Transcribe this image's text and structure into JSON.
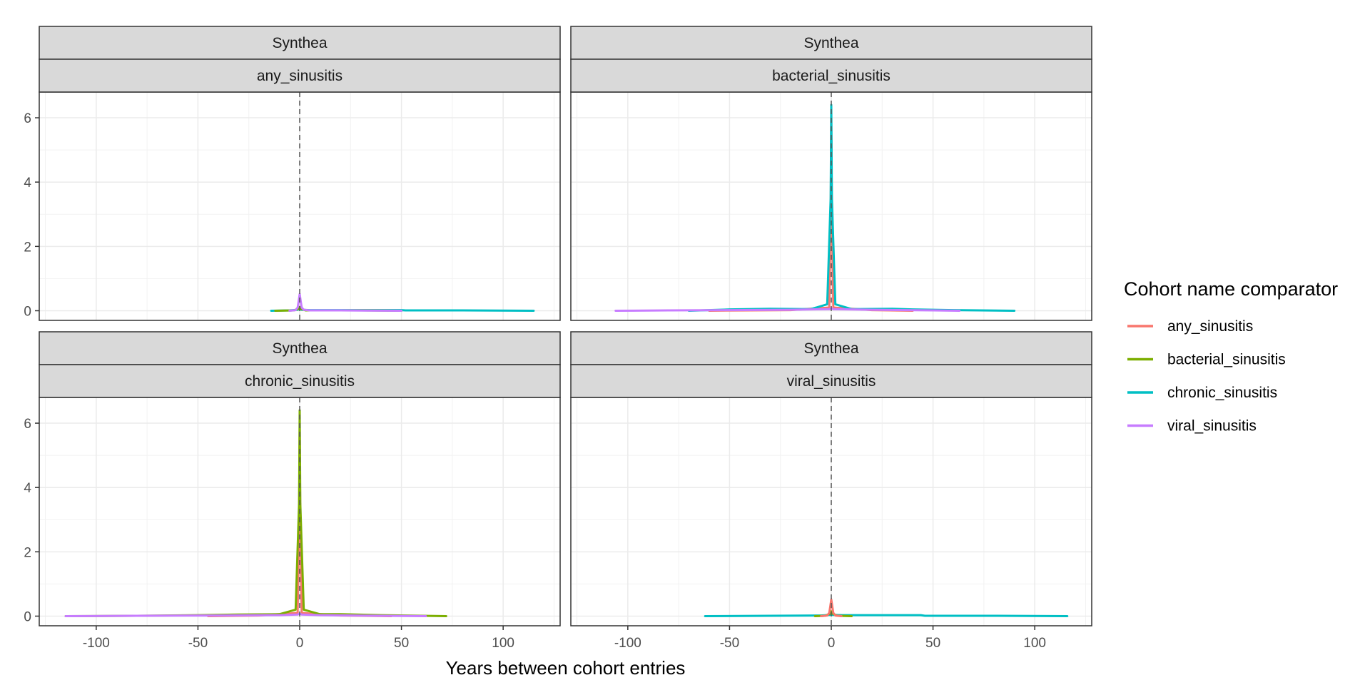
{
  "chart_data": {
    "type": "line",
    "xlabel": "Years between cohort entries",
    "ylabel": "",
    "xlim": [
      -128,
      128
    ],
    "ylim": [
      -0.3,
      6.8
    ],
    "x_ticks": [
      -100,
      -50,
      0,
      50,
      100
    ],
    "x_tick_labels": [
      "-100",
      "-50",
      "0",
      "50",
      "100"
    ],
    "y_ticks": [
      0,
      2,
      4,
      6
    ],
    "y_tick_labels": [
      "0",
      "2",
      "4",
      "6"
    ],
    "reference_line_x": 0,
    "grid": true,
    "legend": {
      "title": "Cohort name comparator",
      "placement": "right",
      "entries": [
        {
          "name": "any_sinusitis",
          "color": "#F8766D"
        },
        {
          "name": "bacterial_sinusitis",
          "color": "#7CAE00"
        },
        {
          "name": "chronic_sinusitis",
          "color": "#00BFC4"
        },
        {
          "name": "viral_sinusitis",
          "color": "#C77CFF"
        }
      ]
    },
    "panels": [
      {
        "database": "Synthea",
        "cohort": "any_sinusitis",
        "series": [
          {
            "name": "chronic_sinusitis",
            "x": [
              -14,
              -5,
              -1,
              0,
              1,
              5,
              20,
              50,
              52,
              80,
              115
            ],
            "y": [
              0,
              0.01,
              0.03,
              0.06,
              0.03,
              0.02,
              0.02,
              0.02,
              0.01,
              0.01,
              0
            ]
          },
          {
            "name": "bacterial_sinusitis",
            "x": [
              -12,
              -3,
              -0.5,
              0,
              0.5,
              3,
              30,
              50
            ],
            "y": [
              0,
              0.01,
              0.06,
              0.12,
              0.06,
              0.01,
              0.01,
              0
            ]
          },
          {
            "name": "viral_sinusitis",
            "x": [
              -5,
              -2,
              -1,
              -0.5,
              0,
              0.5,
              1,
              2,
              5,
              20,
              50
            ],
            "y": [
              0,
              0.02,
              0.1,
              0.3,
              0.52,
              0.3,
              0.1,
              0.03,
              0.01,
              0.01,
              0
            ]
          }
        ]
      },
      {
        "database": "Synthea",
        "cohort": "bacterial_sinusitis",
        "series": [
          {
            "name": "any_sinusitis",
            "x": [
              -60,
              -20,
              -1,
              -0.3,
              0,
              0.3,
              1,
              20,
              40
            ],
            "y": [
              0,
              0.02,
              0.1,
              3.0,
              5.9,
              3.0,
              0.1,
              0.02,
              0
            ]
          },
          {
            "name": "chronic_sinusitis",
            "x": [
              -70,
              -50,
              -30,
              -10,
              -2,
              -0.3,
              0,
              0.3,
              2,
              10,
              30,
              40,
              60,
              90
            ],
            "y": [
              0,
              0.04,
              0.06,
              0.05,
              0.2,
              3.5,
              6.4,
              3.5,
              0.2,
              0.05,
              0.06,
              0.04,
              0.02,
              0
            ]
          },
          {
            "name": "viral_sinusitis",
            "x": [
              -106,
              -80,
              -50,
              -20,
              -1,
              0,
              1,
              20,
              50,
              63
            ],
            "y": [
              0,
              0.01,
              0.02,
              0.03,
              0.05,
              0.08,
              0.05,
              0.03,
              0.01,
              0
            ]
          }
        ]
      },
      {
        "database": "Synthea",
        "cohort": "chronic_sinusitis",
        "series": [
          {
            "name": "any_sinusitis",
            "x": [
              -45,
              -20,
              -1,
              -0.3,
              0,
              0.3,
              1,
              20,
              45
            ],
            "y": [
              0,
              0.02,
              0.1,
              2.8,
              5.8,
              2.8,
              0.1,
              0.02,
              0
            ]
          },
          {
            "name": "bacterial_sinusitis",
            "x": [
              -115,
              -80,
              -50,
              -30,
              -10,
              -2,
              -0.3,
              0,
              0.3,
              2,
              10,
              20,
              40,
              60,
              72
            ],
            "y": [
              0,
              0.01,
              0.03,
              0.05,
              0.06,
              0.2,
              3.5,
              6.4,
              3.5,
              0.2,
              0.06,
              0.06,
              0.03,
              0.01,
              0
            ]
          },
          {
            "name": "viral_sinusitis",
            "x": [
              -115,
              -80,
              -40,
              -10,
              -1,
              0,
              1,
              10,
              40,
              62
            ],
            "y": [
              0,
              0.01,
              0.02,
              0.03,
              0.05,
              0.08,
              0.05,
              0.03,
              0.01,
              0
            ]
          }
        ]
      },
      {
        "database": "Synthea",
        "cohort": "viral_sinusitis",
        "series": [
          {
            "name": "chronic_sinusitis",
            "x": [
              -62,
              -30,
              -5,
              0,
              5,
              20,
              44,
              46,
              80,
              116
            ],
            "y": [
              0,
              0.01,
              0.02,
              0.04,
              0.03,
              0.03,
              0.03,
              0.01,
              0.01,
              0
            ]
          },
          {
            "name": "bacterial_sinusitis",
            "x": [
              -8,
              -3,
              -0.5,
              0,
              0.5,
              3,
              10
            ],
            "y": [
              0,
              0.01,
              0.08,
              0.15,
              0.08,
              0.01,
              0
            ]
          },
          {
            "name": "any_sinusitis",
            "x": [
              -5,
              -2,
              -1,
              -0.5,
              0,
              0.5,
              1,
              2,
              5
            ],
            "y": [
              0,
              0.02,
              0.1,
              0.3,
              0.52,
              0.3,
              0.1,
              0.02,
              0
            ]
          }
        ]
      }
    ]
  }
}
